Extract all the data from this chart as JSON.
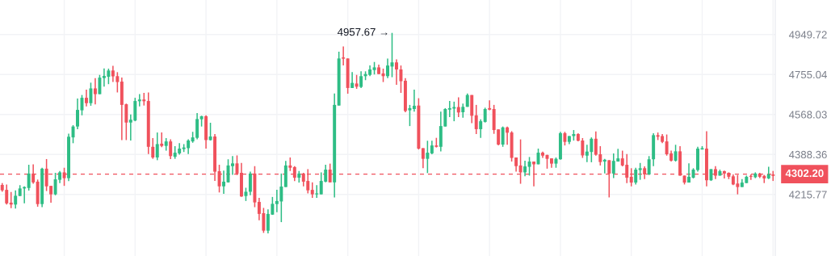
{
  "chart_data": {
    "type": "candlestick",
    "categories": [
      null,
      null,
      null,
      null,
      null,
      null,
      null,
      null,
      null,
      null,
      null,
      null,
      null,
      null,
      null,
      null,
      null,
      null,
      null,
      null,
      null,
      null,
      null,
      null,
      null,
      null,
      null,
      null,
      null,
      null,
      null,
      null,
      null,
      null,
      null,
      null,
      null,
      null,
      null,
      null,
      null,
      null,
      null,
      null,
      null,
      null,
      null,
      null,
      null,
      null,
      null,
      null,
      null,
      null,
      null,
      null,
      null,
      null,
      null,
      null,
      null,
      null,
      null,
      null,
      null,
      null,
      null,
      null,
      null,
      null,
      null,
      null,
      null,
      null,
      null,
      null,
      null,
      null,
      null,
      null,
      null,
      null,
      null,
      null,
      null,
      null,
      null,
      null,
      null,
      null,
      null,
      null,
      null,
      null,
      null,
      null,
      null,
      null,
      null,
      null,
      null,
      null,
      null,
      null,
      null,
      null,
      null,
      null,
      null,
      null,
      null,
      null,
      null,
      null,
      null,
      null,
      null,
      null,
      null,
      null,
      null,
      null,
      null,
      null,
      null,
      null,
      null,
      null,
      null,
      null,
      null,
      null,
      null,
      null,
      null,
      null,
      null,
      null,
      null,
      null,
      null,
      null,
      null,
      null,
      null,
      null,
      null,
      null,
      null,
      null,
      null,
      null,
      null,
      null,
      null,
      null,
      null,
      null,
      null,
      null,
      null,
      null,
      null,
      null,
      null,
      null,
      null,
      null,
      null,
      null,
      null,
      null,
      null,
      null,
      null
    ],
    "ohlc": [
      [
        4256,
        4264,
        4227,
        4233
      ],
      [
        4235,
        4258,
        4173,
        4178
      ],
      [
        4181,
        4226,
        4158,
        4173
      ],
      [
        4173,
        4233,
        4156,
        4210
      ],
      [
        4209,
        4255,
        4209,
        4241
      ],
      [
        4241,
        4250,
        4178,
        4247
      ],
      [
        4243,
        4343,
        4232,
        4305
      ],
      [
        4305,
        4345,
        4261,
        4267
      ],
      [
        4270,
        4279,
        4164,
        4175
      ],
      [
        4175,
        4330,
        4162,
        4326
      ],
      [
        4326,
        4368,
        4230,
        4250
      ],
      [
        4252,
        4252,
        4181,
        4216
      ],
      [
        4216,
        4308,
        4212,
        4280
      ],
      [
        4278,
        4316,
        4264,
        4310
      ],
      [
        4310,
        4330,
        4252,
        4285
      ],
      [
        4285,
        4481,
        4272,
        4467
      ],
      [
        4464,
        4519,
        4438,
        4513
      ],
      [
        4513,
        4642,
        4501,
        4589
      ],
      [
        4587,
        4658,
        4564,
        4645
      ],
      [
        4645,
        4683,
        4605,
        4620
      ],
      [
        4620,
        4716,
        4608,
        4689
      ],
      [
        4689,
        4738,
        4614,
        4662
      ],
      [
        4662,
        4753,
        4662,
        4740
      ],
      [
        4738,
        4784,
        4697,
        4748
      ],
      [
        4744,
        4783,
        4709,
        4774
      ],
      [
        4774,
        4796,
        4719,
        4746
      ],
      [
        4747,
        4766,
        4670,
        4719
      ],
      [
        4721,
        4740,
        4452,
        4612
      ],
      [
        4615,
        4618,
        4452,
        4531
      ],
      [
        4531,
        4568,
        4450,
        4544
      ],
      [
        4540,
        4645,
        4537,
        4630
      ],
      [
        4629,
        4662,
        4605,
        4637
      ],
      [
        4637,
        4668,
        4609,
        4629
      ],
      [
        4630,
        4670,
        4390,
        4422
      ],
      [
        4422,
        4461,
        4369,
        4375
      ],
      [
        4375,
        4486,
        4363,
        4434
      ],
      [
        4436,
        4486,
        4420,
        4426
      ],
      [
        4426,
        4461,
        4405,
        4446
      ],
      [
        4446,
        4455,
        4368,
        4381
      ],
      [
        4378,
        4425,
        4369,
        4396
      ],
      [
        4393,
        4438,
        4387,
        4414
      ],
      [
        4412,
        4434,
        4399,
        4419
      ],
      [
        4416,
        4455,
        4390,
        4450
      ],
      [
        4446,
        4489,
        4440,
        4464
      ],
      [
        4462,
        4574,
        4455,
        4547
      ],
      [
        4546,
        4562,
        4513,
        4560
      ],
      [
        4560,
        4564,
        4414,
        4452
      ],
      [
        4452,
        4530,
        4450,
        4468
      ],
      [
        4468,
        4479,
        4273,
        4313
      ],
      [
        4315,
        4343,
        4224,
        4250
      ],
      [
        4250,
        4318,
        4218,
        4270
      ],
      [
        4267,
        4367,
        4266,
        4340
      ],
      [
        4337,
        4381,
        4299,
        4349
      ],
      [
        4349,
        4384,
        4299,
        4305
      ],
      [
        4308,
        4351,
        4205,
        4207
      ],
      [
        4209,
        4244,
        4188,
        4227
      ],
      [
        4227,
        4313,
        4212,
        4305
      ],
      [
        4305,
        4337,
        4162,
        4182
      ],
      [
        4184,
        4201,
        4108,
        4134
      ],
      [
        4137,
        4159,
        4056,
        4065
      ],
      [
        4065,
        4153,
        4054,
        4134
      ],
      [
        4131,
        4205,
        4130,
        4176
      ],
      [
        4175,
        4235,
        4141,
        4188
      ],
      [
        4186,
        4305,
        4100,
        4249
      ],
      [
        4247,
        4360,
        4247,
        4340
      ],
      [
        4340,
        4375,
        4316,
        4330
      ],
      [
        4333,
        4337,
        4272,
        4287
      ],
      [
        4287,
        4316,
        4266,
        4305
      ],
      [
        4305,
        4308,
        4250,
        4270
      ],
      [
        4273,
        4324,
        4220,
        4233
      ],
      [
        4235,
        4267,
        4201,
        4216
      ],
      [
        4216,
        4255,
        4201,
        4220
      ],
      [
        4216,
        4310,
        4216,
        4273
      ],
      [
        4270,
        4343,
        4267,
        4322
      ],
      [
        4322,
        4348,
        4267,
        4267
      ],
      [
        4267,
        4665,
        4203,
        4612
      ],
      [
        4609,
        4865,
        4609,
        4832
      ],
      [
        4837,
        4891,
        4798,
        4831
      ],
      [
        4832,
        4832,
        4664,
        4691
      ],
      [
        4691,
        4766,
        4691,
        4715
      ],
      [
        4712,
        4753,
        4687,
        4697
      ],
      [
        4696,
        4770,
        4691,
        4747
      ],
      [
        4747,
        4770,
        4728,
        4757
      ],
      [
        4753,
        4798,
        4747,
        4779
      ],
      [
        4776,
        4815,
        4755,
        4789
      ],
      [
        4789,
        4802,
        4757,
        4757
      ],
      [
        4760,
        4783,
        4719,
        4747
      ],
      [
        4747,
        4832,
        4738,
        4798
      ],
      [
        4793,
        4957.67,
        4742,
        4813
      ],
      [
        4813,
        4828,
        4706,
        4779
      ],
      [
        4779,
        4798,
        4668,
        4723
      ],
      [
        4725,
        4738,
        4578,
        4584
      ],
      [
        4587,
        4612,
        4515,
        4597
      ],
      [
        4593,
        4683,
        4581,
        4608
      ],
      [
        4609,
        4643,
        4410,
        4414
      ],
      [
        4416,
        4416,
        4328,
        4369
      ],
      [
        4369,
        4449,
        4307,
        4396
      ],
      [
        4393,
        4449,
        4389,
        4428
      ],
      [
        4428,
        4462,
        4419,
        4422
      ],
      [
        4422,
        4581,
        4402,
        4515
      ],
      [
        4513,
        4597,
        4513,
        4593
      ],
      [
        4590,
        4630,
        4556,
        4597
      ],
      [
        4595,
        4627,
        4537,
        4602
      ],
      [
        4602,
        4647,
        4556,
        4577
      ],
      [
        4578,
        4618,
        4553,
        4603
      ],
      [
        4603,
        4665,
        4603,
        4658
      ],
      [
        4658,
        4658,
        4528,
        4562
      ],
      [
        4564,
        4612,
        4479,
        4501
      ],
      [
        4501,
        4546,
        4462,
        4537
      ],
      [
        4534,
        4599,
        4531,
        4593
      ],
      [
        4597,
        4633,
        4587,
        4590
      ],
      [
        4593,
        4612,
        4480,
        4497
      ],
      [
        4500,
        4500,
        4428,
        4432
      ],
      [
        4432,
        4513,
        4422,
        4509
      ],
      [
        4509,
        4513,
        4431,
        4485
      ],
      [
        4486,
        4492,
        4357,
        4373
      ],
      [
        4375,
        4375,
        4313,
        4337
      ],
      [
        4340,
        4455,
        4261,
        4310
      ],
      [
        4310,
        4361,
        4293,
        4336
      ],
      [
        4334,
        4377,
        4296,
        4357
      ],
      [
        4357,
        4357,
        4250,
        4345
      ],
      [
        4345,
        4414,
        4345,
        4396
      ],
      [
        4396,
        4401,
        4373,
        4383
      ],
      [
        4386,
        4387,
        4326,
        4369
      ],
      [
        4371,
        4371,
        4330,
        4348
      ],
      [
        4348,
        4375,
        4330,
        4369
      ],
      [
        4367,
        4489,
        4365,
        4483
      ],
      [
        4483,
        4489,
        4428,
        4444
      ],
      [
        4444,
        4470,
        4434,
        4470
      ],
      [
        4470,
        4497,
        4450,
        4479
      ],
      [
        4479,
        4483,
        4446,
        4449
      ],
      [
        4450,
        4461,
        4373,
        4384
      ],
      [
        4383,
        4431,
        4355,
        4401
      ],
      [
        4399,
        4464,
        4354,
        4458
      ],
      [
        4458,
        4491,
        4383,
        4387
      ],
      [
        4389,
        4425,
        4340,
        4355
      ],
      [
        4357,
        4369,
        4305,
        4365
      ],
      [
        4363,
        4363,
        4203,
        4305
      ],
      [
        4305,
        4393,
        4285,
        4360
      ],
      [
        4357,
        4413,
        4357,
        4371
      ],
      [
        4371,
        4405,
        4336,
        4340
      ],
      [
        4343,
        4390,
        4264,
        4287
      ],
      [
        4291,
        4328,
        4250,
        4266
      ],
      [
        4266,
        4330,
        4258,
        4322
      ],
      [
        4320,
        4351,
        4278,
        4328
      ],
      [
        4328,
        4336,
        4281,
        4301
      ],
      [
        4301,
        4381,
        4299,
        4367
      ],
      [
        4367,
        4483,
        4337,
        4474
      ],
      [
        4474,
        4486,
        4452,
        4467
      ],
      [
        4470,
        4479,
        4438,
        4444
      ],
      [
        4446,
        4477,
        4383,
        4389
      ],
      [
        4393,
        4405,
        4357,
        4361
      ],
      [
        4361,
        4431,
        4357,
        4402
      ],
      [
        4402,
        4425,
        4296,
        4296
      ],
      [
        4296,
        4296,
        4258,
        4266
      ],
      [
        4266,
        4349,
        4266,
        4291
      ],
      [
        4287,
        4328,
        4284,
        4322
      ],
      [
        4320,
        4422,
        4313,
        4414
      ],
      [
        4410,
        4425,
        4410,
        4416
      ],
      [
        4414,
        4492,
        4250,
        4276
      ],
      [
        4276,
        4324,
        4273,
        4324
      ],
      [
        4324,
        4337,
        4281,
        4296
      ],
      [
        4296,
        4322,
        4296,
        4315
      ],
      [
        4315,
        4318,
        4284,
        4305
      ],
      [
        4308,
        4310,
        4281,
        4291
      ],
      [
        4293,
        4301,
        4255,
        4258
      ],
      [
        4262,
        4299,
        4216,
        4247
      ],
      [
        4247,
        4281,
        4247,
        4266
      ],
      [
        4264,
        4296,
        4264,
        4291
      ],
      [
        4295,
        4301,
        4278,
        4291
      ],
      [
        4289,
        4310,
        4285,
        4305
      ],
      [
        4305,
        4308,
        4285,
        4291
      ],
      [
        4295,
        4299,
        4264,
        4284
      ],
      [
        4284,
        4334,
        4281,
        4301
      ],
      [
        4301,
        4316,
        4273,
        4295
      ]
    ],
    "colors": [
      "#f0515c",
      "#f0515c",
      "#f0515c",
      "#2ebd85",
      "#2ebd85",
      "#2ebd85",
      "#2ebd85",
      "#f0515c",
      "#f0515c",
      "#2ebd85",
      "#f0515c",
      "#f0515c",
      "#2ebd85",
      "#2ebd85",
      "#f0515c",
      "#2ebd85",
      "#2ebd85",
      "#2ebd85",
      "#2ebd85",
      "#f0515c",
      "#2ebd85",
      "#f0515c",
      "#2ebd85",
      "#2ebd85",
      "#2ebd85",
      "#f0515c",
      "#f0515c",
      "#f0515c",
      "#f0515c",
      "#2ebd85",
      "#2ebd85",
      "#2ebd85",
      "#f0515c",
      "#f0515c",
      "#f0515c",
      "#2ebd85",
      "#f0515c",
      "#2ebd85",
      "#f0515c",
      "#2ebd85",
      "#2ebd85",
      "#2ebd85",
      "#2ebd85",
      "#2ebd85",
      "#2ebd85",
      "#2ebd85",
      "#f0515c",
      "#2ebd85",
      "#f0515c",
      "#f0515c",
      "#2ebd85",
      "#2ebd85",
      "#2ebd85",
      "#f0515c",
      "#f0515c",
      "#2ebd85",
      "#2ebd85",
      "#f0515c",
      "#f0515c",
      "#f0515c",
      "#2ebd85",
      "#2ebd85",
      "#2ebd85",
      "#2ebd85",
      "#2ebd85",
      "#f0515c",
      "#f0515c",
      "#2ebd85",
      "#f0515c",
      "#f0515c",
      "#f0515c",
      "#2ebd85",
      "#2ebd85",
      "#2ebd85",
      "#f0515c",
      "#2ebd85",
      "#2ebd85",
      "#f0515c",
      "#f0515c",
      "#2ebd85",
      "#f0515c",
      "#2ebd85",
      "#2ebd85",
      "#2ebd85",
      "#2ebd85",
      "#f0515c",
      "#f0515c",
      "#2ebd85",
      "#2ebd85",
      "#f0515c",
      "#f0515c",
      "#f0515c",
      "#2ebd85",
      "#2ebd85",
      "#f0515c",
      "#f0515c",
      "#2ebd85",
      "#2ebd85",
      "#f0515c",
      "#2ebd85",
      "#2ebd85",
      "#2ebd85",
      "#2ebd85",
      "#f0515c",
      "#2ebd85",
      "#2ebd85",
      "#f0515c",
      "#f0515c",
      "#2ebd85",
      "#2ebd85",
      "#f0515c",
      "#f0515c",
      "#f0515c",
      "#2ebd85",
      "#f0515c",
      "#f0515c",
      "#f0515c",
      "#f0515c",
      "#2ebd85",
      "#2ebd85",
      "#f0515c",
      "#2ebd85",
      "#f0515c",
      "#f0515c",
      "#f0515c",
      "#2ebd85",
      "#2ebd85",
      "#f0515c",
      "#2ebd85",
      "#2ebd85",
      "#f0515c",
      "#f0515c",
      "#2ebd85",
      "#2ebd85",
      "#f0515c",
      "#f0515c",
      "#2ebd85",
      "#f0515c",
      "#2ebd85",
      "#2ebd85",
      "#f0515c",
      "#f0515c",
      "#f0515c",
      "#2ebd85",
      "#2ebd85",
      "#f0515c",
      "#2ebd85",
      "#2ebd85",
      "#f0515c",
      "#f0515c",
      "#f0515c",
      "#f0515c",
      "#2ebd85",
      "#f0515c",
      "#f0515c",
      "#2ebd85",
      "#2ebd85",
      "#2ebd85",
      "#2ebd85",
      "#f0515c",
      "#2ebd85",
      "#f0515c",
      "#2ebd85",
      "#f0515c",
      "#f0515c",
      "#f0515c",
      "#f0515c",
      "#2ebd85",
      "#2ebd85",
      "#f0515c",
      "#2ebd85",
      "#f0515c",
      "#f0515c",
      "#2ebd85",
      "#f0515c"
    ],
    "log": true,
    "ylim": [
      3963,
      5124
    ],
    "yticks": [
      4215.77,
      4388.36,
      4568.03,
      4755.04,
      4949.72
    ],
    "grid": true,
    "tick_labels": "y",
    "ref_lines": [
      {
        "axis": "y",
        "value": 4302.2,
        "label": "4302.20",
        "color": "#f0515c",
        "line_style": "dashed"
      }
    ],
    "annotations": [
      "4957.67 →"
    ]
  }
}
